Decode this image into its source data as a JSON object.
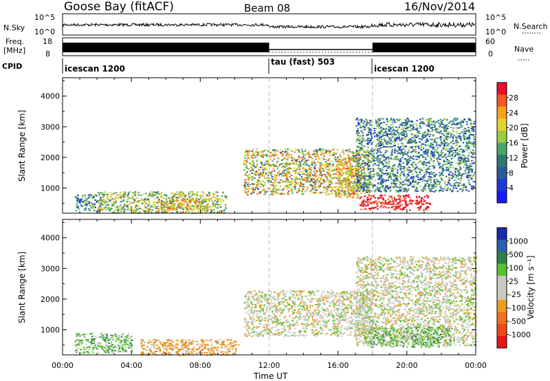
{
  "header": {
    "station": "Goose Bay (fitACF)",
    "beam": "Beam 08",
    "date": "16/Nov/2014"
  },
  "aux": {
    "nsky_label": "N.Sky",
    "nsearch_label": "N.Search",
    "nsky_ticks": [
      "10^5",
      "10^0"
    ],
    "nsearch_ticks": [
      "10^5",
      "10^0"
    ],
    "freq_label": "Freq.",
    "freq_unit": "[MHz]",
    "freq_ticks": [
      "18",
      "8"
    ],
    "nave_label": "Nave",
    "nave_ticks": [
      "60",
      "0"
    ],
    "cpid_label": "CPID",
    "cpid_segments": [
      {
        "label": "icescan 1200",
        "start_hour": 0,
        "end_hour": 12
      },
      {
        "label": "tau (fast) 503",
        "start_hour": 12,
        "end_hour": 18
      },
      {
        "label": "icescan 1200",
        "start_hour": 18,
        "end_hour": 24
      }
    ]
  },
  "chart_data": [
    {
      "type": "heatmap",
      "panel": "power",
      "ylabel": "Slant Range [km]",
      "xlabel": "Time UT",
      "xlim_hours": [
        0,
        24
      ],
      "ylim": [
        180,
        4600
      ],
      "yticks": [
        "1000",
        "2000",
        "3000",
        "4000"
      ],
      "xticks": [
        "00:00",
        "04:00",
        "08:00",
        "12:00",
        "16:00",
        "20:00",
        "00:00"
      ],
      "colorbar": {
        "label": "Power [dB]",
        "ticks": [
          "28",
          "24",
          "20",
          "16",
          "12",
          "8",
          "4"
        ],
        "colors": [
          "#e8102a",
          "#f05a1e",
          "#f7a21c",
          "#e2d32a",
          "#9ccc45",
          "#4aa56a",
          "#2f7a6f",
          "#2b5a9a",
          "#1e3ad6",
          "#1a1aff"
        ]
      },
      "regions": [
        {
          "t0": 0.7,
          "t1": 2.2,
          "r0": 250,
          "r1": 800,
          "level": "low-mid"
        },
        {
          "t0": 2.0,
          "t1": 9.5,
          "r0": 200,
          "r1": 900,
          "level": "mid"
        },
        {
          "t0": 5.5,
          "t1": 8.5,
          "r0": 300,
          "r1": 650,
          "level": "high"
        },
        {
          "t0": 10.5,
          "t1": 17.8,
          "r0": 800,
          "r1": 2300,
          "level": "mid-high"
        },
        {
          "t0": 15.8,
          "t1": 17.2,
          "r0": 700,
          "r1": 2000,
          "level": "high"
        },
        {
          "t0": 17.0,
          "t1": 23.9,
          "r0": 900,
          "r1": 3300,
          "level": "low-mid"
        },
        {
          "t0": 17.2,
          "t1": 21.3,
          "r0": 300,
          "r1": 800,
          "level": "max"
        }
      ]
    },
    {
      "type": "heatmap",
      "panel": "velocity",
      "ylabel": "Slant Range [km]",
      "xlabel": "Time UT",
      "xlim_hours": [
        0,
        24
      ],
      "ylim": [
        180,
        4600
      ],
      "yticks": [
        "1000",
        "2000",
        "3000",
        "4000"
      ],
      "xticks": [
        "00:00",
        "04:00",
        "08:00",
        "12:00",
        "16:00",
        "20:00",
        "00:00"
      ],
      "colorbar": {
        "label": "Velocity [m s⁻¹]",
        "ticks": [
          "1000",
          "500",
          "100",
          "25",
          "-25",
          "-100",
          "-500",
          "-1000"
        ],
        "colors": [
          "#1a2aa8",
          "#2a5fae",
          "#2f7f4a",
          "#59c22f",
          "#c9c9c0",
          "#c9c9c0",
          "#e8a020",
          "#f07020",
          "#ee4a15",
          "#e81515"
        ]
      },
      "regions": [
        {
          "t0": 0.7,
          "t1": 4.0,
          "r0": 250,
          "r1": 900,
          "level": "positive"
        },
        {
          "t0": 4.5,
          "t1": 10.2,
          "r0": 180,
          "r1": 700,
          "level": "negative"
        },
        {
          "t0": 10.5,
          "t1": 18.0,
          "r0": 800,
          "r1": 2300,
          "level": "near-zero"
        },
        {
          "t0": 17.0,
          "t1": 24.0,
          "r0": 500,
          "r1": 3400,
          "level": "near-zero"
        },
        {
          "t0": 17.5,
          "t1": 22.5,
          "r0": 450,
          "r1": 1100,
          "level": "positive"
        }
      ]
    }
  ]
}
